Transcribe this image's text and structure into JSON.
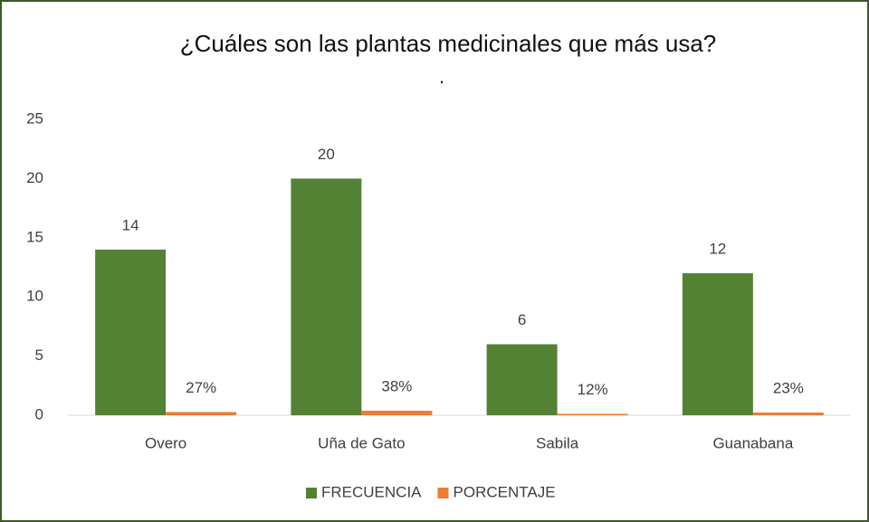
{
  "chart_data": {
    "type": "bar",
    "title": "¿Cuáles son las plantas medicinales que más usa?",
    "subtitle": ".",
    "categories": [
      "Overo",
      "Uña de Gato",
      "Sabila",
      "Guanabana"
    ],
    "series": [
      {
        "name": "FRECUENCIA",
        "color": "#548235",
        "values": [
          14,
          20,
          6,
          12
        ]
      },
      {
        "name": "PORCENTAJE",
        "color": "#ed7d31",
        "values": [
          0.27,
          0.38,
          0.12,
          0.23
        ],
        "value_labels": [
          "27%",
          "38%",
          "12%",
          "23%"
        ]
      }
    ],
    "ylim": [
      0,
      25
    ],
    "yticks": [
      0,
      5,
      10,
      15,
      20,
      25
    ],
    "grid": false,
    "legend": "bottom"
  }
}
